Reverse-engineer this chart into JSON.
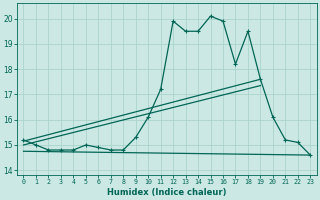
{
  "xlabel": "Humidex (Indice chaleur)",
  "bg_color": "#cce8e4",
  "grid_color": "#aad4cc",
  "line_color": "#006655",
  "xlim": [
    -0.5,
    23.5
  ],
  "ylim": [
    13.8,
    20.6
  ],
  "main_x": [
    0,
    1,
    2,
    3,
    4,
    5,
    6,
    7,
    8,
    9,
    10,
    11,
    12,
    13,
    14,
    15,
    16,
    17,
    18,
    19,
    20,
    21,
    22,
    23
  ],
  "main_y": [
    15.2,
    15.0,
    14.8,
    14.8,
    14.8,
    15.0,
    14.9,
    14.8,
    14.8,
    15.3,
    16.1,
    17.2,
    19.9,
    19.5,
    19.5,
    20.1,
    19.9,
    18.2,
    19.5,
    17.6,
    16.1,
    15.2,
    15.1,
    14.6
  ],
  "line2_x": [
    0,
    19
  ],
  "line2_y": [
    15.15,
    17.6
  ],
  "line3_x": [
    0,
    19
  ],
  "line3_y": [
    15.0,
    17.35
  ],
  "line4_x": [
    0,
    23
  ],
  "line4_y": [
    14.75,
    14.6
  ],
  "yticks": [
    14,
    15,
    16,
    17,
    18,
    19,
    20
  ]
}
